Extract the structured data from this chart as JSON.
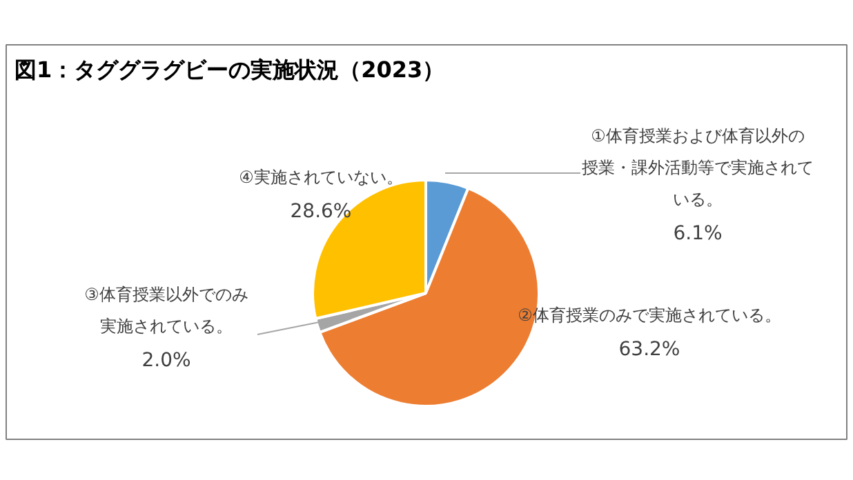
{
  "chart_data": {
    "type": "pie",
    "title": "図1：タググラグビーの実施状況（2023）",
    "categories": [
      "①体育授業および体育以外の授業・課外活動等で実施されている。",
      "②体育授業のみで実施されている。",
      "③体育授業以外でのみ実施されている。",
      "④実施されていない。"
    ],
    "values": [
      6.1,
      63.2,
      2.0,
      28.6
    ],
    "value_labels": [
      "6.1%",
      "63.2%",
      "2.0%",
      "28.6%"
    ],
    "colors": [
      "#5b9bd5",
      "#ed7d31",
      "#a5a5a5",
      "#ffc000"
    ]
  }
}
